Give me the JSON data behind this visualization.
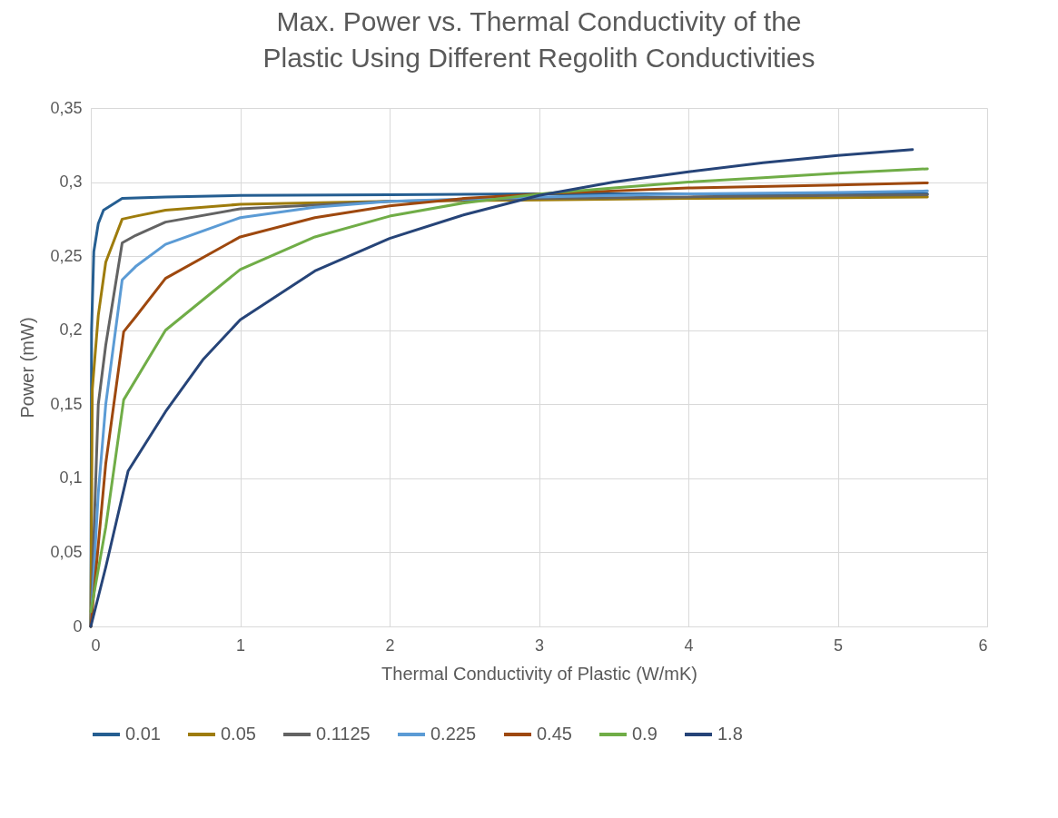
{
  "chart_data": {
    "type": "line",
    "title": "Max. Power vs. Thermal Conductivity of the Plastic Using Different Regolith Conductivities",
    "xlabel": "Thermal Conductivity of Plastic (W/mK)",
    "ylabel": "Power (mW)",
    "xlim": [
      0,
      6
    ],
    "xticks": [
      0,
      1,
      2,
      3,
      4,
      5,
      6
    ],
    "ylim": [
      0,
      0.35
    ],
    "yticks": [
      0,
      {
        "value": 0.05,
        "label": "0,05"
      },
      {
        "value": 0.1,
        "label": "0,1"
      },
      {
        "value": 0.15,
        "label": "0,15"
      },
      {
        "value": 0.2,
        "label": "0,2"
      },
      {
        "value": 0.25,
        "label": "0,25"
      },
      {
        "value": 0.3,
        "label": "0,3"
      },
      {
        "value": 0.35,
        "label": "0,35"
      }
    ],
    "grid": true,
    "legend": "bottom",
    "marker": "none",
    "line_style": "solid",
    "series": [
      {
        "name": "0.01",
        "color": "#255e91",
        "x": [
          0,
          0.005,
          0.02,
          0.05,
          0.085,
          0.21,
          0.5,
          1,
          2,
          3,
          4,
          5,
          5.6
        ],
        "values": [
          0,
          0.2,
          0.253,
          0.272,
          0.281,
          0.289,
          0.29,
          0.291,
          0.2915,
          0.292,
          0.292,
          0.292,
          0.292
        ]
      },
      {
        "name": "0.05",
        "color": "#9e7c0c",
        "x": [
          0,
          0.01,
          0.05,
          0.1,
          0.21,
          0.3,
          0.5,
          1,
          2,
          3,
          4,
          5,
          5.6
        ],
        "values": [
          0,
          0.16,
          0.21,
          0.246,
          0.275,
          0.277,
          0.281,
          0.285,
          0.287,
          0.288,
          0.289,
          0.2895,
          0.29
        ]
      },
      {
        "name": "0.1125",
        "color": "#636363",
        "x": [
          0,
          0.05,
          0.1,
          0.21,
          0.3,
          0.5,
          1,
          2,
          3,
          4,
          5,
          5.6
        ],
        "values": [
          0,
          0.15,
          0.19,
          0.259,
          0.264,
          0.273,
          0.282,
          0.287,
          0.289,
          0.29,
          0.291,
          0.2915
        ]
      },
      {
        "name": "0.225",
        "color": "#5b9bd5",
        "x": [
          0,
          0.05,
          0.1,
          0.21,
          0.3,
          0.5,
          1,
          1.5,
          2,
          3,
          4,
          5,
          5.6
        ],
        "values": [
          0,
          0.09,
          0.15,
          0.234,
          0.243,
          0.258,
          0.276,
          0.283,
          0.287,
          0.29,
          0.292,
          0.293,
          0.294
        ]
      },
      {
        "name": "0.45",
        "color": "#9e480e",
        "x": [
          0,
          0.1,
          0.22,
          0.3,
          0.5,
          1,
          1.5,
          2,
          2.5,
          3,
          4,
          5,
          5.6
        ],
        "values": [
          0,
          0.11,
          0.199,
          0.209,
          0.235,
          0.263,
          0.276,
          0.284,
          0.289,
          0.292,
          0.296,
          0.298,
          0.2995
        ]
      },
      {
        "name": "0.9",
        "color": "#70ad47",
        "x": [
          0,
          0.1,
          0.22,
          0.5,
          1,
          1.5,
          2,
          2.5,
          3,
          3.5,
          4,
          4.5,
          5,
          5.6
        ],
        "values": [
          0.01,
          0.067,
          0.153,
          0.2,
          0.241,
          0.263,
          0.277,
          0.286,
          0.292,
          0.296,
          0.3,
          0.303,
          0.306,
          0.309
        ]
      },
      {
        "name": "1.8",
        "color": "#264478",
        "x": [
          0,
          0.1,
          0.25,
          0.5,
          0.75,
          1,
          1.5,
          2,
          2.5,
          3,
          3.5,
          4,
          4.5,
          5,
          5.5
        ],
        "values": [
          0,
          0.04,
          0.105,
          0.145,
          0.18,
          0.207,
          0.24,
          0.262,
          0.278,
          0.291,
          0.3,
          0.307,
          0.313,
          0.318,
          0.322
        ]
      }
    ]
  }
}
